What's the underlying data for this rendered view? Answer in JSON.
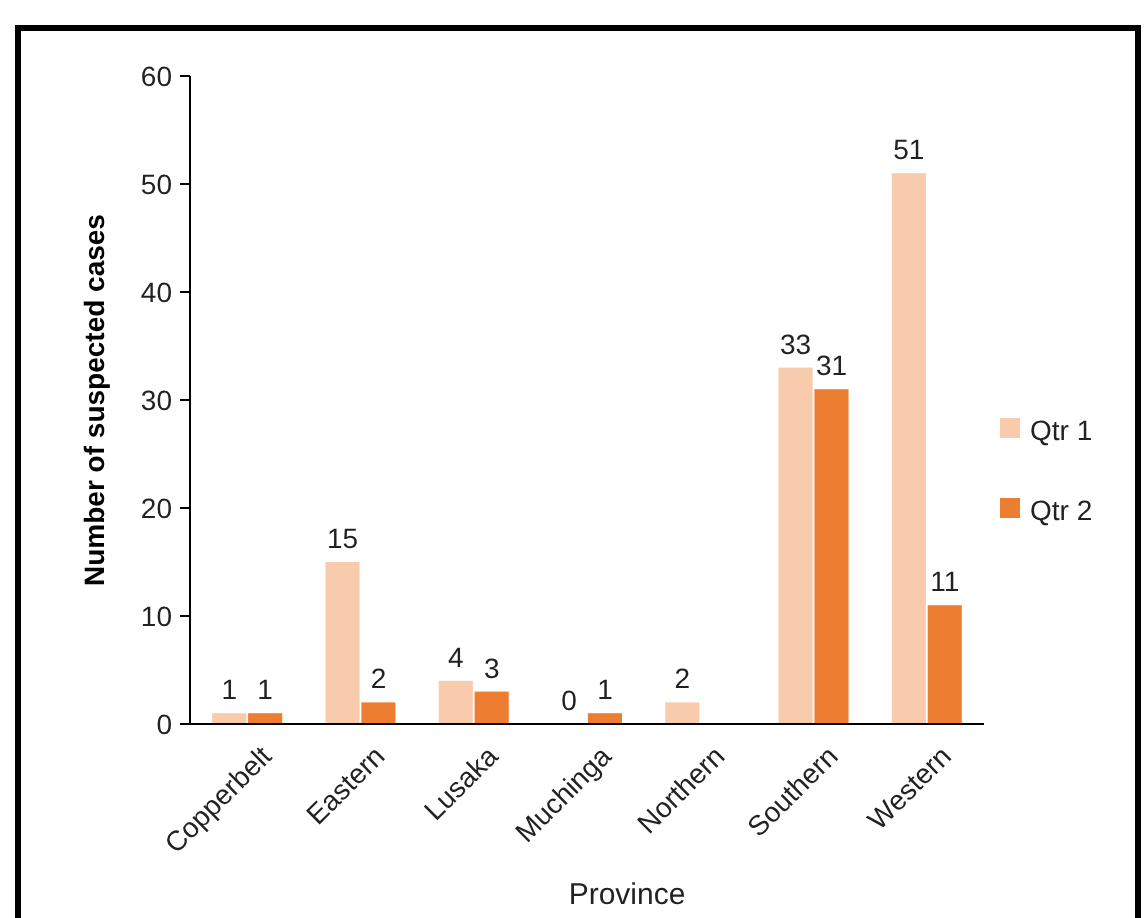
{
  "chart_data": {
    "type": "bar",
    "xlabel": "Province",
    "ylabel": "Number of suspected cases",
    "categories": [
      "Copperbelt",
      "Eastern",
      "Lusaka",
      "Muchinga",
      "Northern",
      "Southern",
      "Western"
    ],
    "series": [
      {
        "name": "Qtr 1",
        "color": "#f8cbad",
        "values": [
          1,
          15,
          4,
          0,
          2,
          33,
          51
        ]
      },
      {
        "name": "Qtr 2",
        "color": "#ed7d31",
        "values": [
          1,
          2,
          3,
          1,
          null,
          31,
          11
        ]
      }
    ],
    "ylim": [
      0,
      60
    ],
    "yticks": [
      0,
      10,
      20,
      30,
      40,
      50,
      60
    ],
    "data_labels": true,
    "legend": "right",
    "grid": false
  }
}
